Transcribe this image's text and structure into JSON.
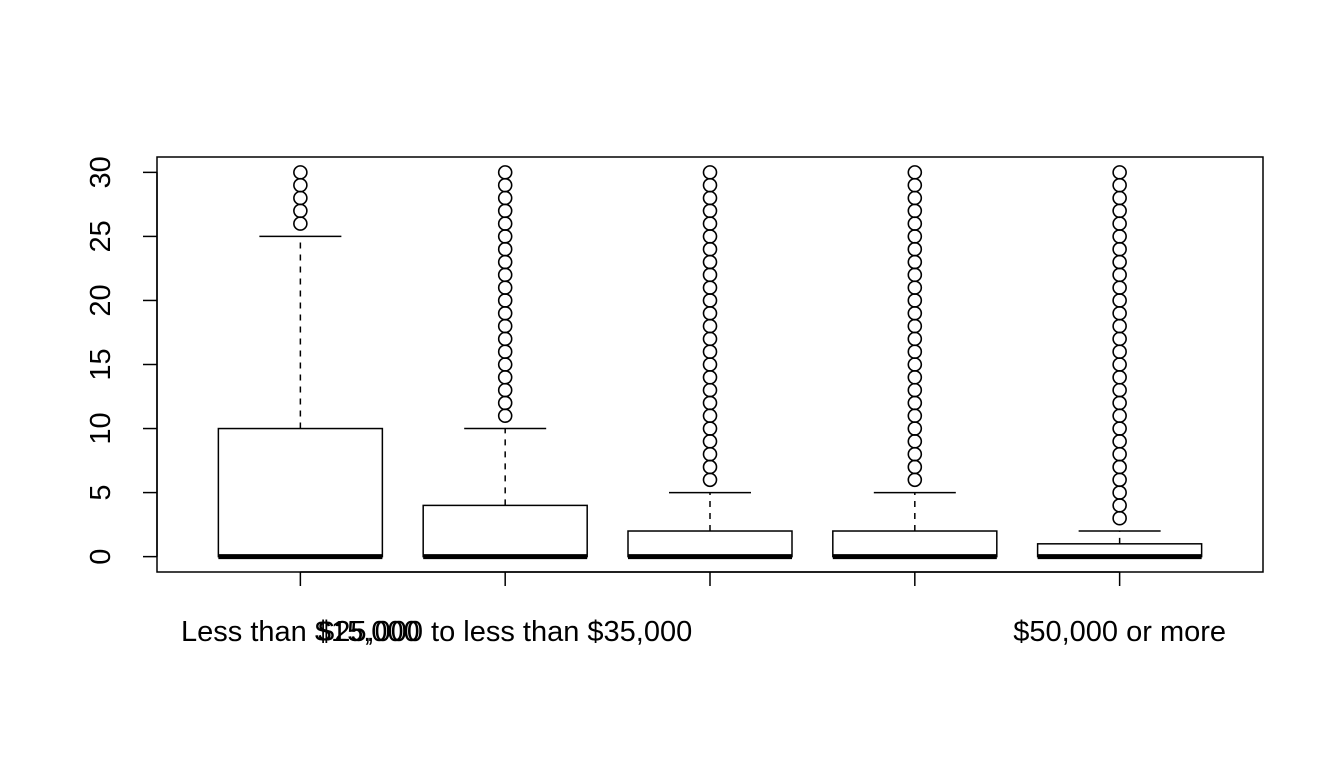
{
  "chart_data": {
    "type": "boxplot",
    "title": "",
    "xlabel": "",
    "ylabel": "",
    "ylim": [
      -1.2,
      31.2
    ],
    "yticks": [
      0,
      5,
      10,
      15,
      20,
      25,
      30
    ],
    "grid": false,
    "legend": "none",
    "categories": [
      {
        "name": "Less than $15,000",
        "show_label": true,
        "min": 0,
        "q1": 0,
        "median": 0,
        "q3": 10,
        "max": 25,
        "outliers": [
          26,
          27,
          28,
          29,
          30
        ]
      },
      {
        "name": "$25,000 to less than $35,000",
        "show_label": true,
        "min": 0,
        "q1": 0,
        "median": 0,
        "q3": 4,
        "max": 10,
        "outliers": [
          11,
          12,
          13,
          14,
          15,
          16,
          17,
          18,
          19,
          20,
          21,
          22,
          23,
          24,
          25,
          26,
          27,
          28,
          29,
          30
        ]
      },
      {
        "name": "",
        "show_label": false,
        "min": 0,
        "q1": 0,
        "median": 0,
        "q3": 2,
        "max": 5,
        "outliers": [
          6,
          7,
          8,
          9,
          10,
          11,
          12,
          13,
          14,
          15,
          16,
          17,
          18,
          19,
          20,
          21,
          22,
          23,
          24,
          25,
          26,
          27,
          28,
          29,
          30
        ]
      },
      {
        "name": "",
        "show_label": false,
        "min": 0,
        "q1": 0,
        "median": 0,
        "q3": 2,
        "max": 5,
        "outliers": [
          6,
          7,
          8,
          9,
          10,
          11,
          12,
          13,
          14,
          15,
          16,
          17,
          18,
          19,
          20,
          21,
          22,
          23,
          24,
          25,
          26,
          27,
          28,
          29,
          30
        ]
      },
      {
        "name": "$50,000 or more",
        "show_label": true,
        "min": 0,
        "q1": 0,
        "median": 0,
        "q3": 1,
        "max": 2,
        "outliers": [
          3,
          4,
          5,
          6,
          7,
          8,
          9,
          10,
          11,
          12,
          13,
          14,
          15,
          16,
          17,
          18,
          19,
          20,
          21,
          22,
          23,
          24,
          25,
          26,
          27,
          28,
          29,
          30
        ]
      }
    ]
  }
}
